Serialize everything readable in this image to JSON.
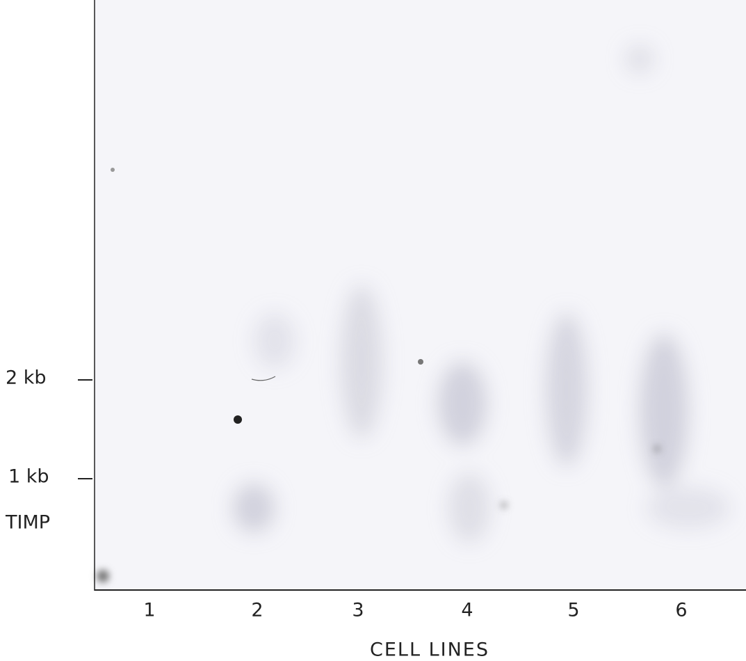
{
  "markers": [
    {
      "label": "2 kb"
    },
    {
      "label": "1 kb"
    }
  ],
  "probe_label": "TIMP",
  "lanes": [
    "1",
    "2",
    "3",
    "4",
    "5",
    "6"
  ],
  "x_axis_label": "CELL LINES"
}
